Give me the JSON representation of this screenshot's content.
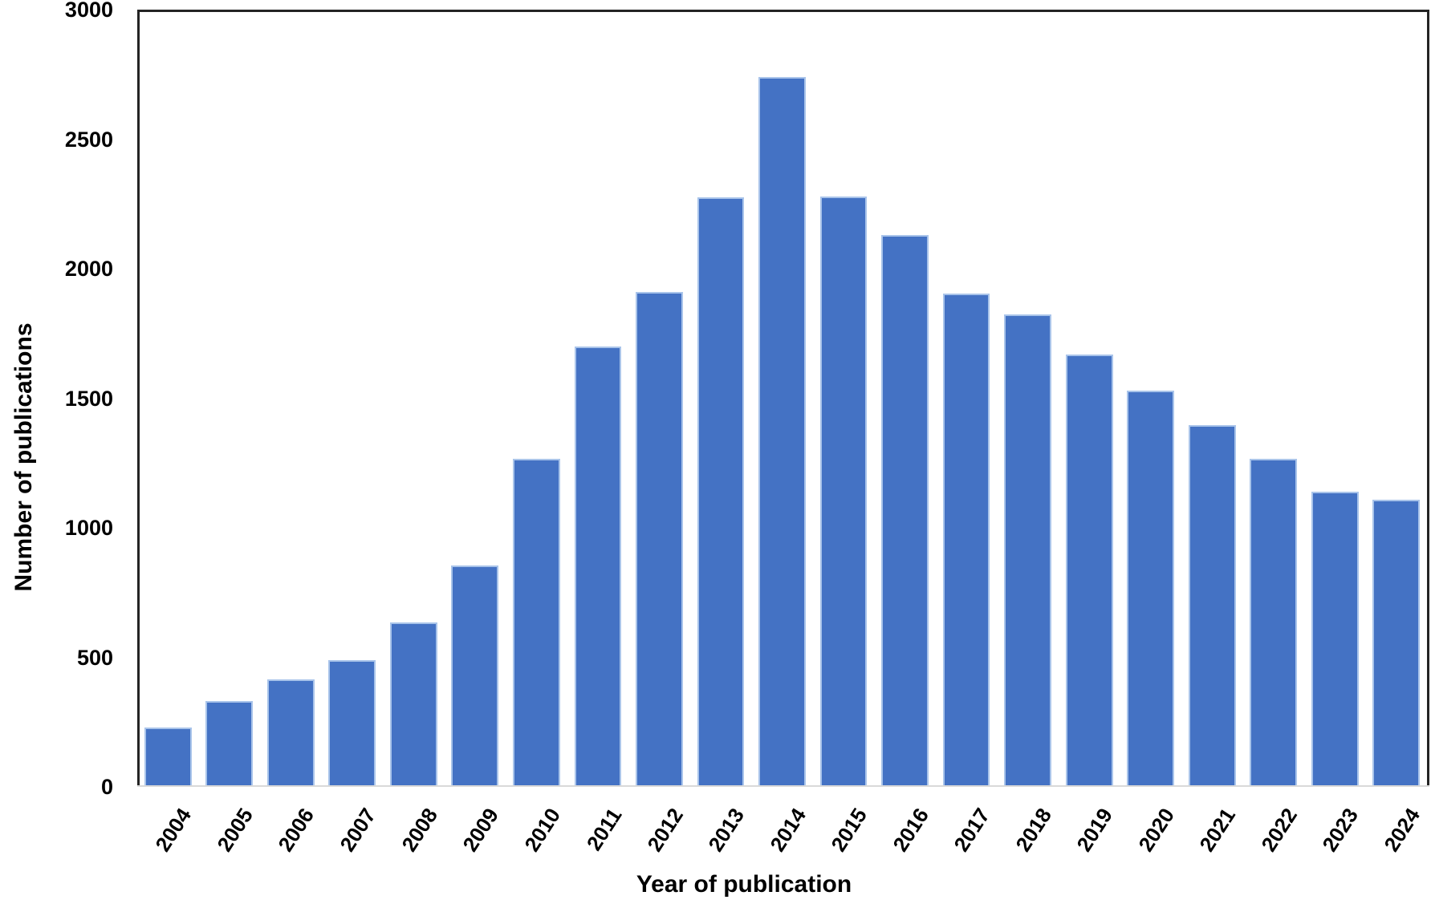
{
  "chart_data": {
    "type": "bar",
    "title": "",
    "xlabel": "Year of publication",
    "ylabel": "Number of publications",
    "categories": [
      "2004",
      "2005",
      "2006",
      "2007",
      "2008",
      "2009",
      "2010",
      "2011",
      "2012",
      "2013",
      "2014",
      "2015",
      "2016",
      "2017",
      "2018",
      "2019",
      "2020",
      "2021",
      "2022",
      "2023",
      "2024"
    ],
    "values": [
      230,
      330,
      415,
      490,
      635,
      855,
      1265,
      1700,
      1910,
      2275,
      2740,
      2280,
      2130,
      1905,
      1825,
      1670,
      1530,
      1395,
      1265,
      1140,
      1110
    ],
    "ylim": [
      0,
      3000
    ],
    "yticks": [
      0,
      500,
      1000,
      1500,
      2000,
      2500,
      3000
    ],
    "grid": false,
    "legend": false,
    "bar_color": "#4472C4",
    "bar_border_color": "#A9C4EA",
    "axis_line_color": "#242424",
    "baseline_color": "#D9D9D9",
    "text_color": "#000000"
  }
}
